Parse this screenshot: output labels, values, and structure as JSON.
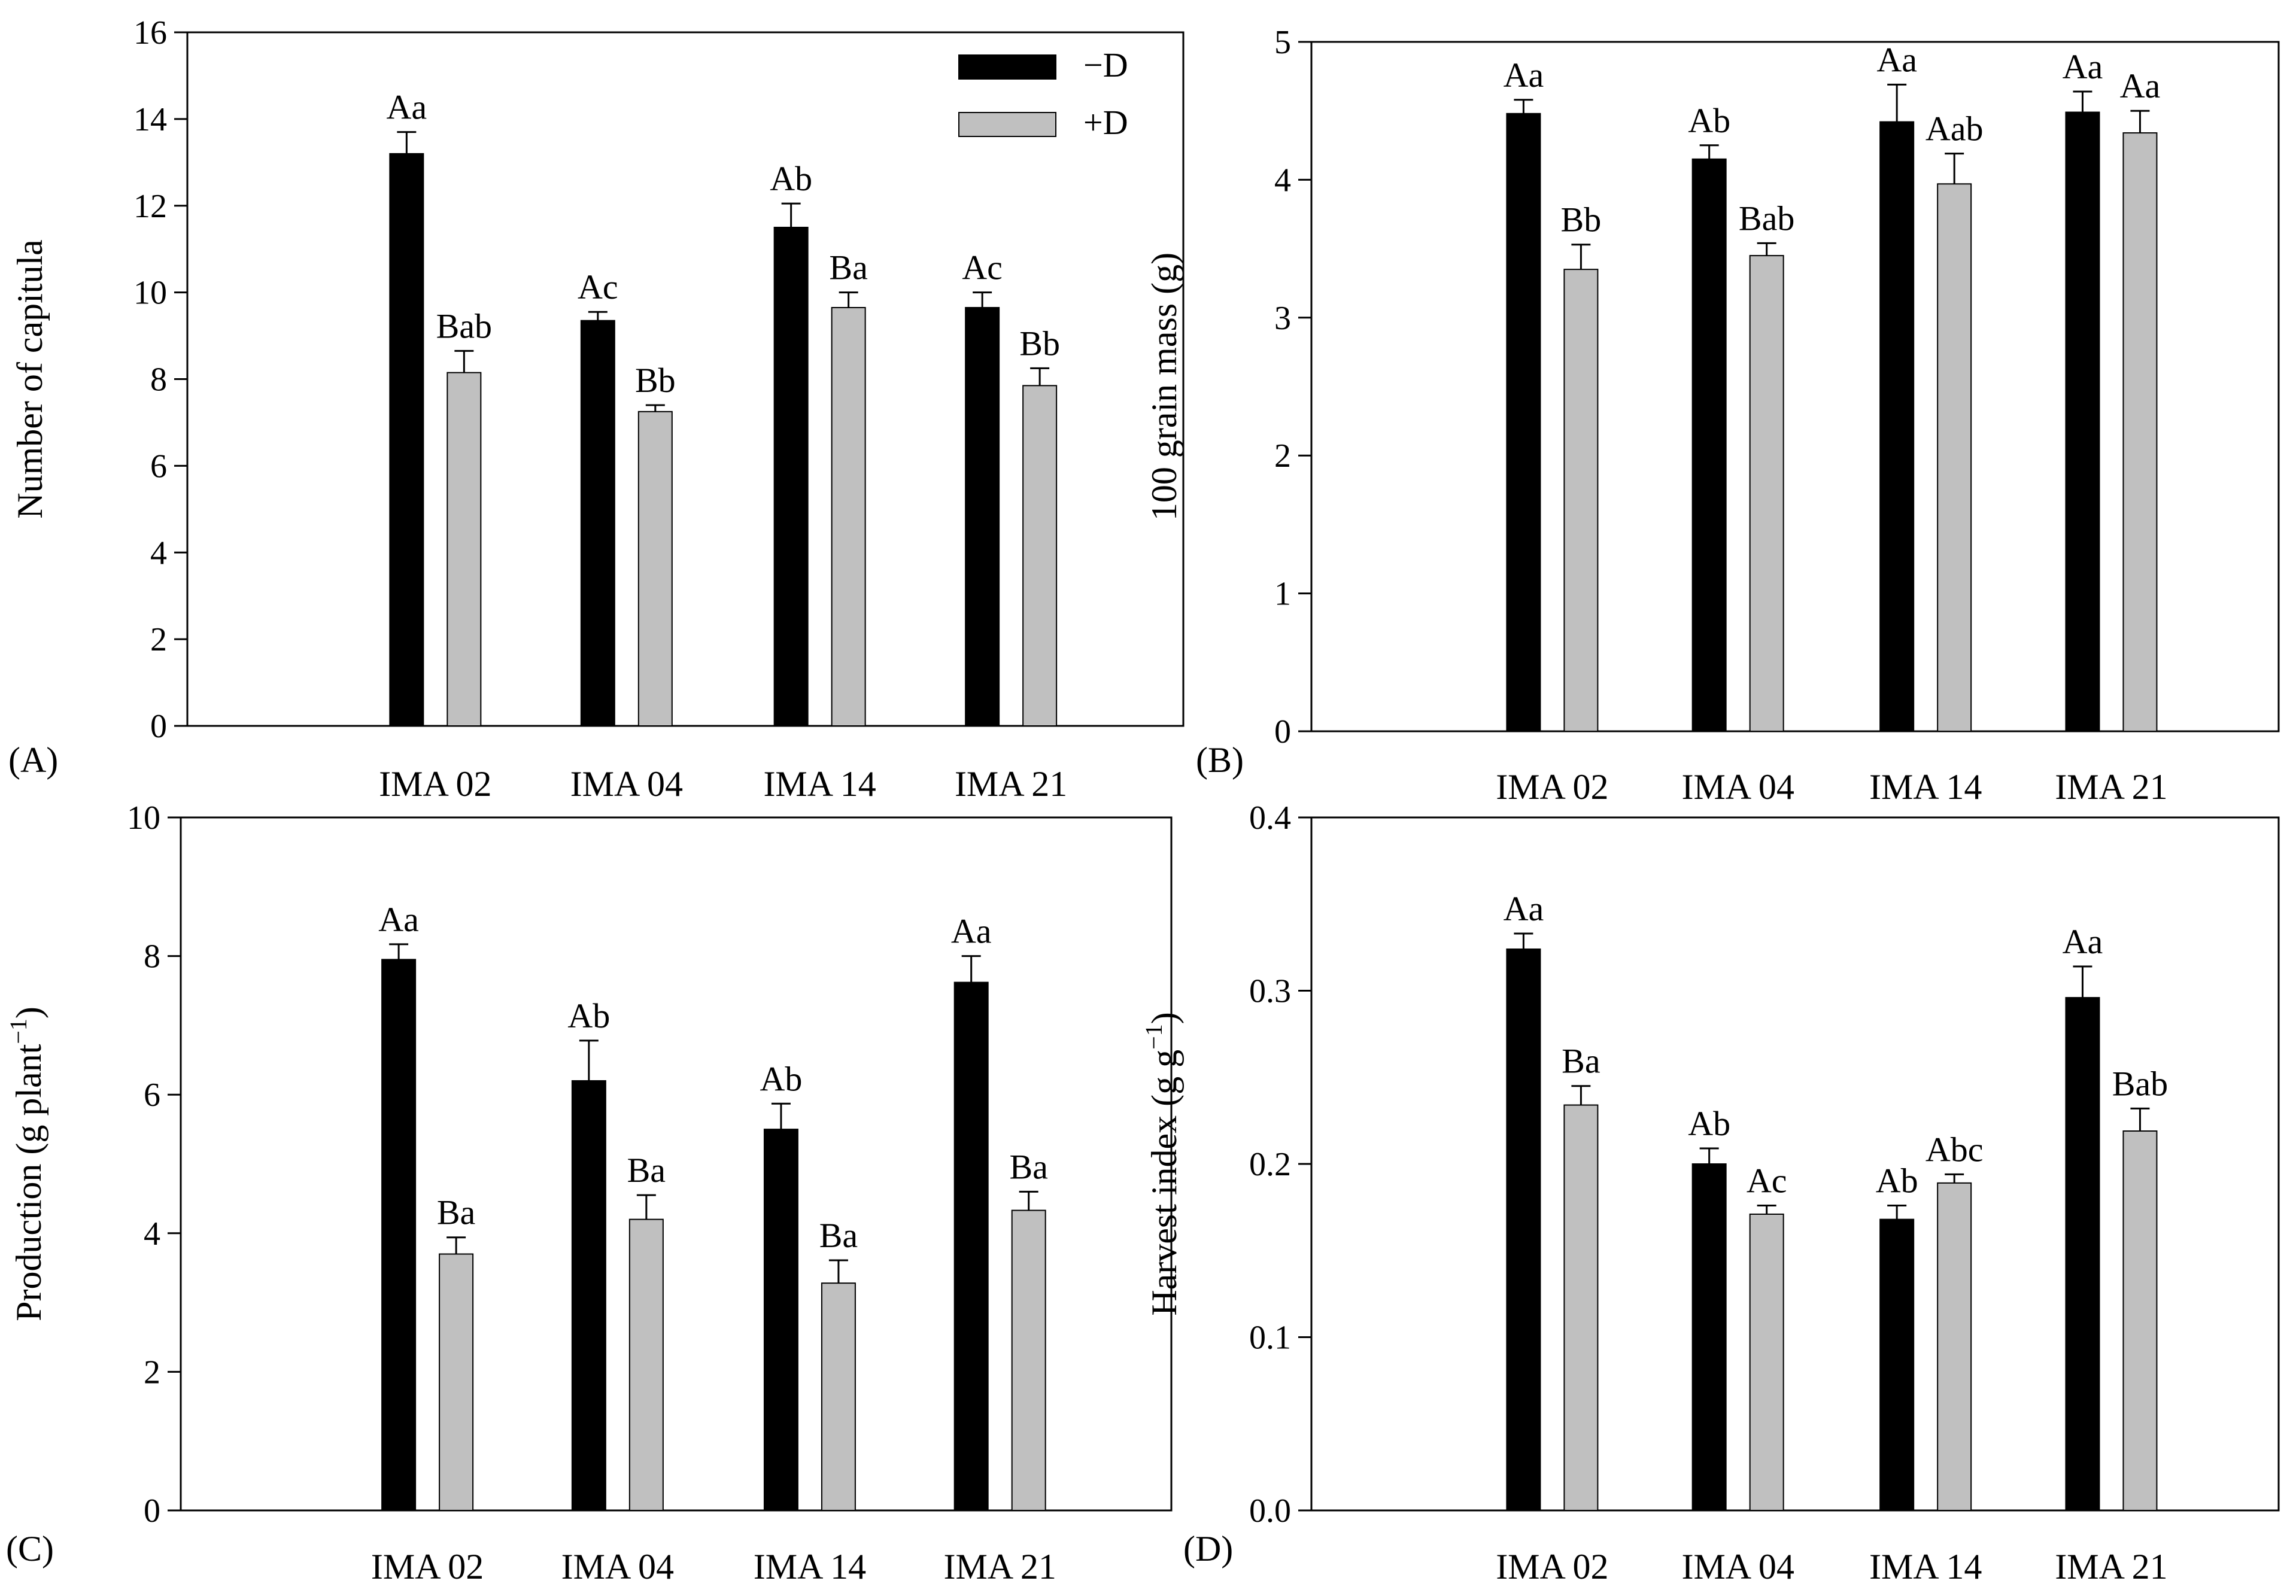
{
  "legend": {
    "entries": [
      {
        "label": "−D",
        "color": "#000000"
      },
      {
        "label": "+D",
        "color": "#c0c0c0"
      }
    ]
  },
  "chart_data": [
    {
      "panel": "(A)",
      "type": "bar",
      "categories": [
        "IMA 02",
        "IMA 04",
        "IMA 14",
        "IMA 21"
      ],
      "ylabel": "Number of capitula",
      "ylabel_sup": "",
      "ylabel_suffix": "",
      "ylim": [
        0,
        16
      ],
      "yticks": [
        "0",
        "2",
        "4",
        "6",
        "8",
        "10",
        "12",
        "14",
        "16"
      ],
      "series": [
        {
          "name": "−D",
          "color": "#000000",
          "values": [
            13.2,
            9.35,
            11.5,
            9.65
          ],
          "errors": [
            0.5,
            0.2,
            0.55,
            0.35
          ],
          "labels": [
            "Aa",
            "Ac",
            "Ab",
            "Ac"
          ]
        },
        {
          "name": "+D",
          "color": "#c0c0c0",
          "values": [
            8.15,
            7.25,
            9.65,
            7.85
          ],
          "errors": [
            0.5,
            0.15,
            0.35,
            0.4
          ],
          "labels": [
            "Bab",
            "Bb",
            "Ba",
            "Bb"
          ]
        }
      ]
    },
    {
      "panel": "(B)",
      "type": "bar",
      "categories": [
        "IMA 02",
        "IMA 04",
        "IMA 14",
        "IMA 21"
      ],
      "ylabel": "100 grain mass (g)",
      "ylabel_sup": "",
      "ylabel_suffix": "",
      "ylim": [
        0,
        5
      ],
      "yticks": [
        "0",
        "1",
        "2",
        "3",
        "4",
        "5"
      ],
      "series": [
        {
          "name": "−D",
          "color": "#000000",
          "values": [
            4.48,
            4.15,
            4.42,
            4.49
          ],
          "errors": [
            0.1,
            0.1,
            0.27,
            0.15
          ],
          "labels": [
            "Aa",
            "Ab",
            "Aa",
            "Aa"
          ]
        },
        {
          "name": "+D",
          "color": "#c0c0c0",
          "values": [
            3.35,
            3.45,
            3.97,
            4.34
          ],
          "errors": [
            0.18,
            0.09,
            0.22,
            0.16
          ],
          "labels": [
            "Bb",
            "Bab",
            "Aab",
            "Aa"
          ]
        }
      ]
    },
    {
      "panel": "(C)",
      "type": "bar",
      "categories": [
        "IMA 02",
        "IMA 04",
        "IMA 14",
        "IMA 21"
      ],
      "ylabel": "Production (g plant",
      "ylabel_sup": "−1",
      "ylabel_suffix": ")",
      "ylim": [
        0,
        10
      ],
      "yticks": [
        "0",
        "2",
        "4",
        "6",
        "8",
        "10"
      ],
      "series": [
        {
          "name": "−D",
          "color": "#000000",
          "values": [
            7.95,
            6.2,
            5.5,
            7.62
          ],
          "errors": [
            0.22,
            0.58,
            0.37,
            0.38
          ],
          "labels": [
            "Aa",
            "Ab",
            "Ab",
            "Aa"
          ]
        },
        {
          "name": "+D",
          "color": "#c0c0c0",
          "values": [
            3.7,
            4.2,
            3.28,
            4.33
          ],
          "errors": [
            0.24,
            0.35,
            0.33,
            0.27
          ],
          "labels": [
            "Ba",
            "Ba",
            "Ba",
            "Ba"
          ]
        }
      ]
    },
    {
      "panel": "(D)",
      "type": "bar",
      "categories": [
        "IMA 02",
        "IMA 04",
        "IMA 14",
        "IMA 21"
      ],
      "ylabel": "Harvest index (g g",
      "ylabel_sup": "−1",
      "ylabel_suffix": ")",
      "ylim": [
        0,
        0.4
      ],
      "yticks": [
        "0.0",
        "0.1",
        "0.2",
        "0.3",
        "0.4"
      ],
      "series": [
        {
          "name": "−D",
          "color": "#000000",
          "values": [
            0.324,
            0.2,
            0.168,
            0.296
          ],
          "errors": [
            0.009,
            0.009,
            0.008,
            0.018
          ],
          "labels": [
            "Aa",
            "Ab",
            "Ab",
            "Aa"
          ]
        },
        {
          "name": "+D",
          "color": "#c0c0c0",
          "values": [
            0.234,
            0.171,
            0.189,
            0.219
          ],
          "errors": [
            0.011,
            0.005,
            0.005,
            0.013
          ],
          "labels": [
            "Ba",
            "Ac",
            "Abc",
            "Bab"
          ]
        }
      ]
    }
  ]
}
